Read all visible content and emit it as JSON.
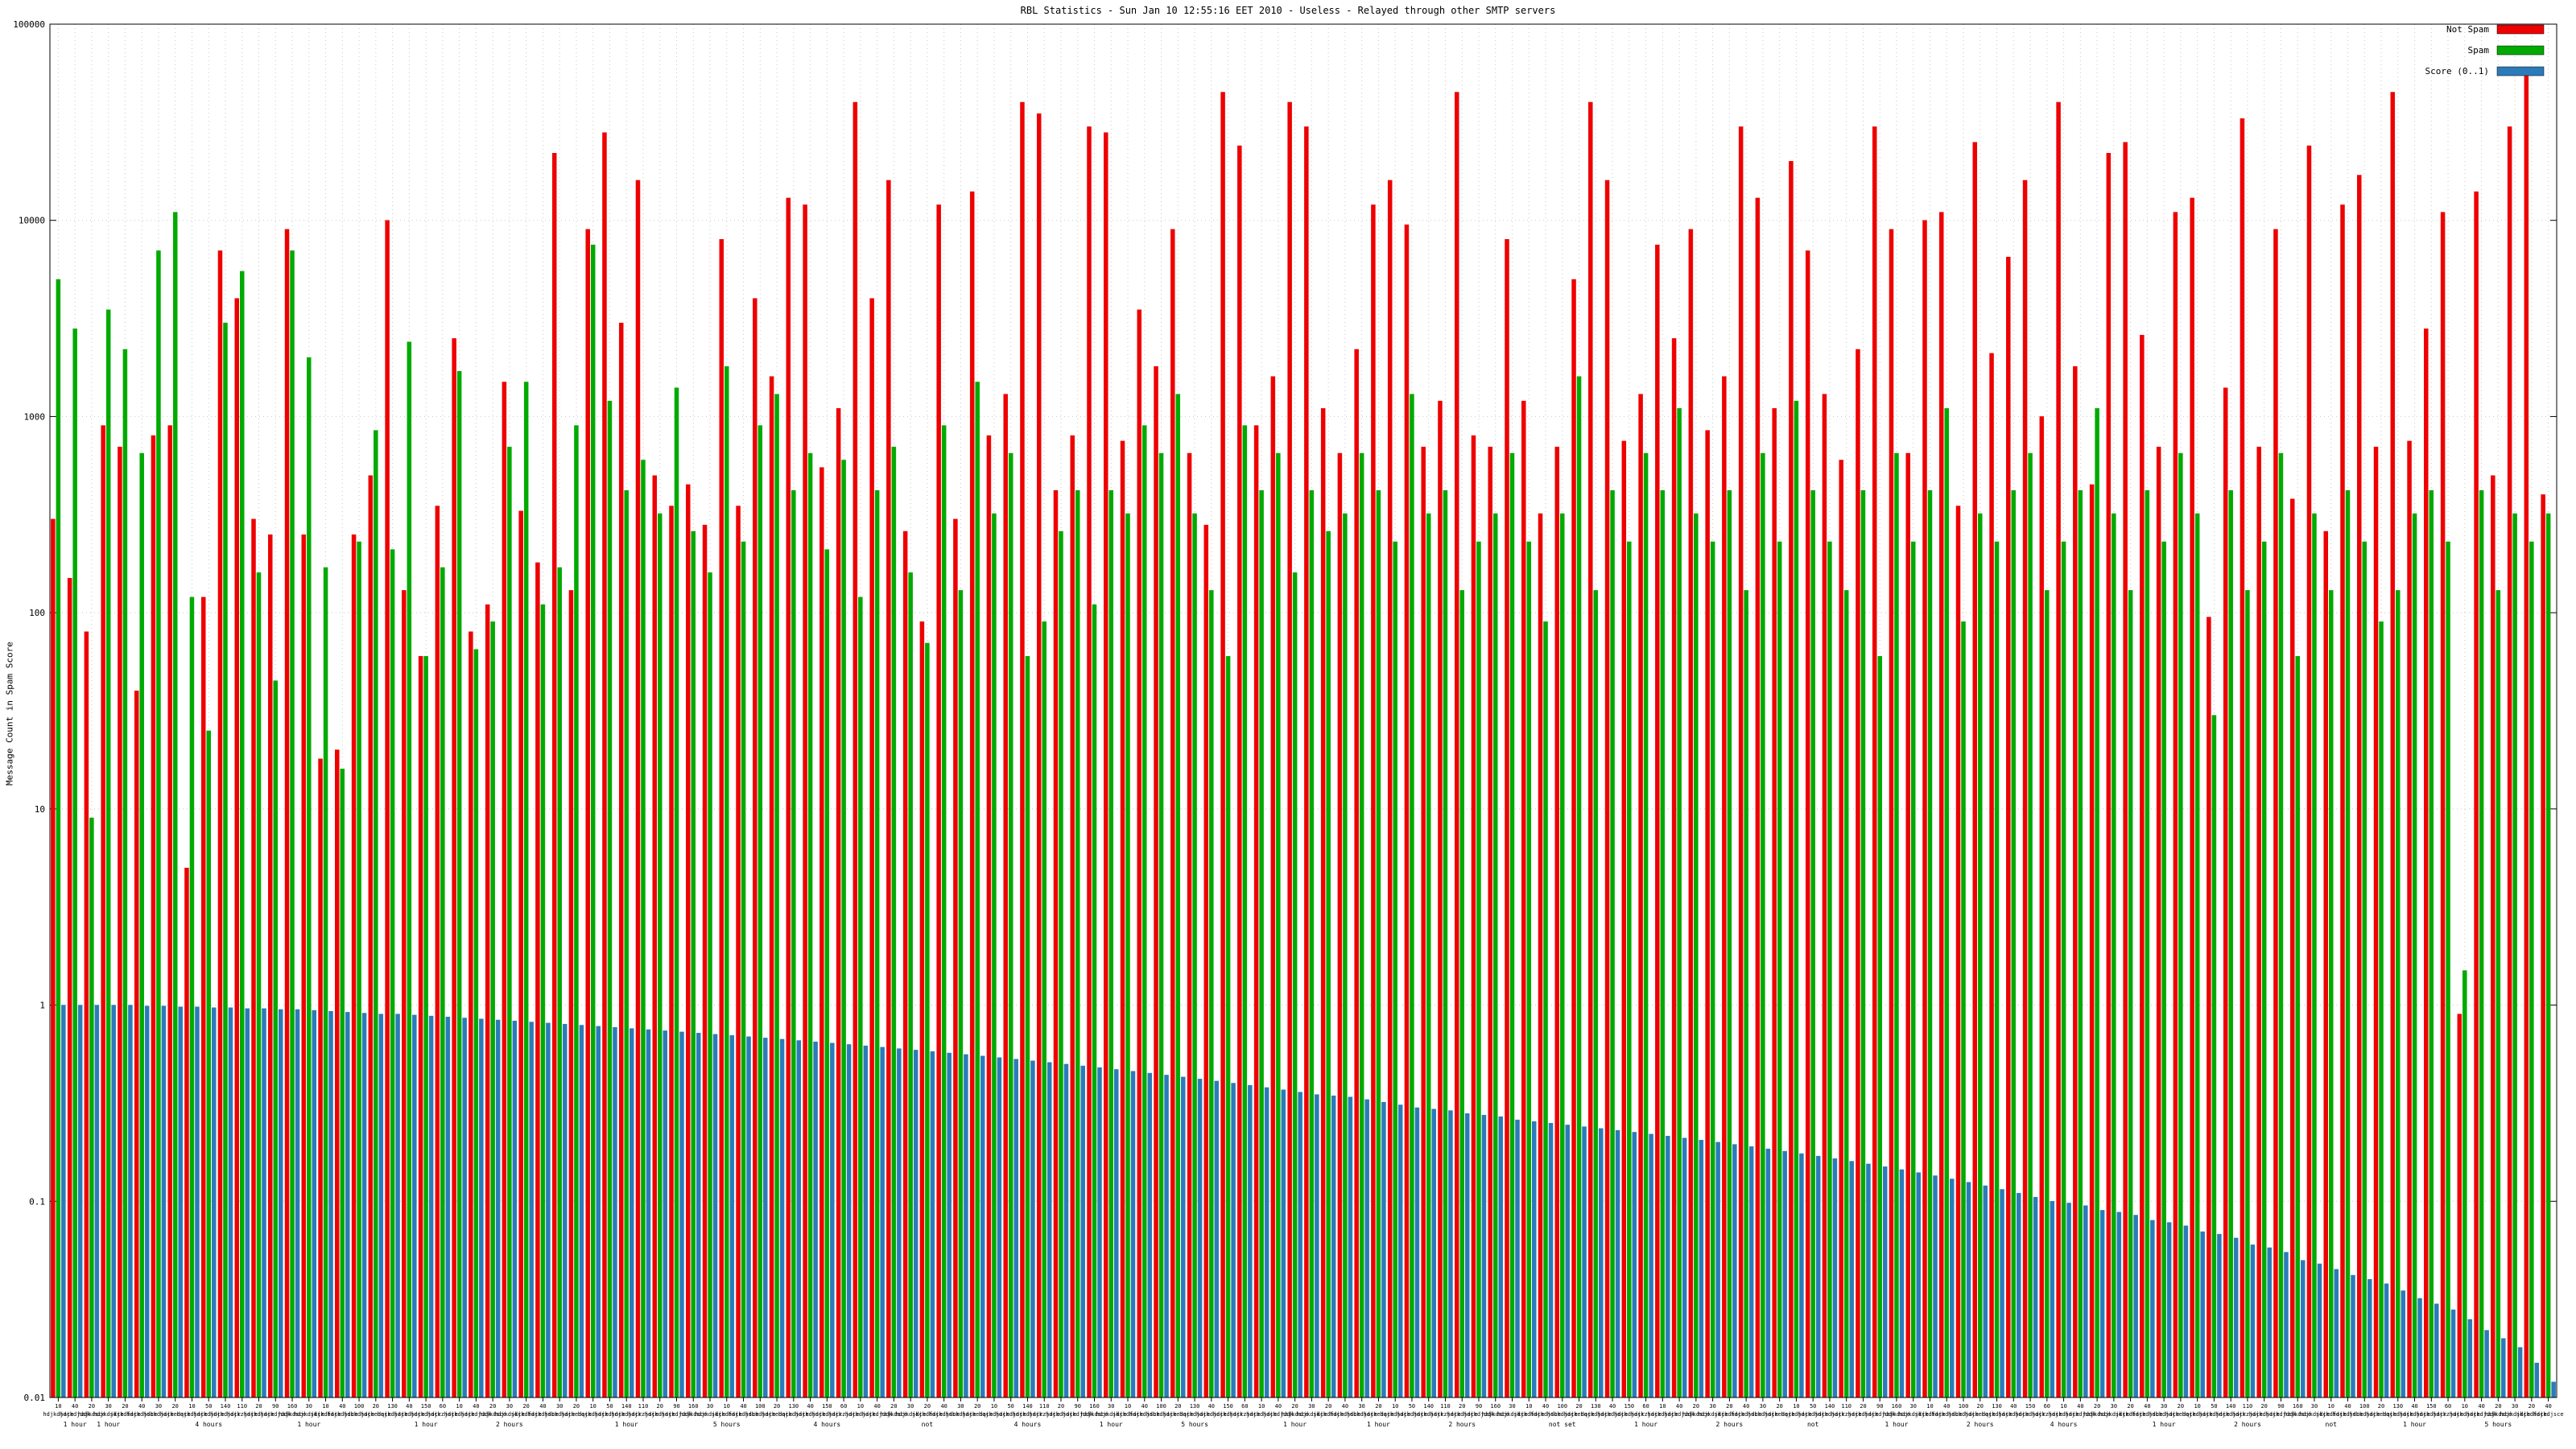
{
  "title": "RBL Statistics - Sun Jan 10 12:55:16 EET 2010 - Useless - Relayed through other SMTP servers",
  "y_axis_label": "Message Count in Spam Score",
  "colors": {
    "not_spam": "#ee0000",
    "spam": "#00aa00",
    "score": "#2b7bba",
    "grid": "#c8c8c8",
    "border": "#000000",
    "background": "#ffffff"
  },
  "legend": [
    {
      "label": "Not Spam",
      "color": "#ee0000"
    },
    {
      "label": "Spam",
      "color": "#00aa00"
    },
    {
      "label": "Score (0..1)",
      "color": "#2b7bba"
    }
  ],
  "chart_data": {
    "type": "bar",
    "scale": "log",
    "title": "RBL Statistics - Sun Jan 10 12:55:16 EET 2010 - Useless - Relayed through other SMTP servers",
    "xlabel": "",
    "ylabel": "Message Count in Spam Score",
    "ylim": [
      0.01,
      100000
    ],
    "y_ticks": [
      "100000",
      "10000",
      "1000",
      "100",
      "10",
      "1",
      "0.1",
      "0.01"
    ],
    "grid": "dotted",
    "legend_position": "top-right",
    "series": [
      {
        "name": "Not Spam",
        "color": "#ee0000",
        "values": [
          300,
          150,
          80,
          900,
          700,
          40,
          800,
          900,
          5,
          120,
          7000,
          4000,
          300,
          250,
          9000,
          250,
          18,
          20,
          250,
          500,
          10000,
          130,
          60,
          350,
          2500,
          80,
          110,
          1500,
          330,
          180,
          22000,
          130,
          9000,
          28000,
          3000,
          16000,
          500,
          350,
          450,
          280,
          8000,
          350,
          4000,
          1600,
          13000,
          12000,
          550,
          1100,
          40000,
          4000,
          16000,
          260,
          90,
          12000,
          300,
          14000,
          800,
          1300,
          40000,
          35000,
          420,
          800,
          30000,
          28000,
          750,
          3500,
          1800,
          9000,
          650,
          280,
          45000,
          24000,
          900,
          1600,
          40000,
          30000,
          1100,
          650,
          2200,
          12000,
          16000,
          9500,
          700,
          1200,
          45000,
          800,
          700,
          8000,
          1200,
          320,
          700,
          5000,
          40000,
          16000,
          750,
          1300,
          7500,
          2500,
          9000,
          850,
          1600,
          30000,
          13000,
          1100,
          20000,
          7000,
          1300,
          600,
          2200,
          30000,
          9000,
          650,
          10000,
          11000,
          350,
          25000,
          2100,
          6500,
          16000,
          1000,
          40000,
          1800,
          450,
          22000,
          25000,
          2600,
          700,
          11000,
          13000,
          95,
          1400,
          33000,
          700,
          9000,
          380,
          24000,
          260,
          12000,
          17000,
          700,
          45000,
          750,
          2800,
          11000,
          0.9,
          14000,
          500,
          30000,
          55000,
          400
        ]
      },
      {
        "name": "Spam",
        "color": "#00aa00",
        "values": [
          5000,
          2800,
          9,
          3500,
          2200,
          650,
          7000,
          11000,
          120,
          25,
          3000,
          5500,
          160,
          45,
          7000,
          2000,
          170,
          16,
          230,
          850,
          210,
          2400,
          60,
          170,
          1700,
          65,
          90,
          700,
          1500,
          110,
          170,
          900,
          7500,
          1200,
          420,
          600,
          320,
          1400,
          260,
          160,
          1800,
          230,
          900,
          1300,
          420,
          650,
          210,
          600,
          120,
          420,
          700,
          160,
          70,
          900,
          130,
          1500,
          320,
          650,
          60,
          90,
          260,
          420,
          110,
          420,
          320,
          900,
          650,
          1300,
          320,
          130,
          60,
          900,
          420,
          650,
          160,
          420,
          260,
          320,
          650,
          420,
          230,
          1300,
          320,
          420,
          130,
          230,
          320,
          650,
          230,
          90,
          320,
          1600,
          130,
          420,
          230,
          650,
          420,
          1100,
          320,
          230,
          420,
          130,
          650,
          230,
          1200,
          420,
          230,
          130,
          420,
          60,
          650,
          230,
          420,
          1100,
          90,
          320,
          230,
          420,
          650,
          130,
          230,
          420,
          1100,
          320,
          130,
          420,
          230,
          650,
          320,
          30,
          420,
          130,
          230,
          650,
          60,
          320,
          130,
          420,
          230,
          90,
          130,
          320,
          420,
          230,
          1.5,
          420,
          130,
          320,
          230,
          320
        ]
      },
      {
        "name": "Score (0..1)",
        "color": "#2b7bba",
        "values": [
          1.0,
          1.0,
          1.0,
          1.0,
          1.0,
          0.99,
          0.99,
          0.98,
          0.98,
          0.97,
          0.97,
          0.96,
          0.96,
          0.95,
          0.95,
          0.94,
          0.93,
          0.92,
          0.91,
          0.9,
          0.9,
          0.89,
          0.88,
          0.87,
          0.86,
          0.85,
          0.84,
          0.83,
          0.82,
          0.81,
          0.8,
          0.79,
          0.78,
          0.77,
          0.76,
          0.75,
          0.74,
          0.73,
          0.72,
          0.71,
          0.7,
          0.69,
          0.68,
          0.67,
          0.66,
          0.65,
          0.64,
          0.63,
          0.62,
          0.61,
          0.6,
          0.59,
          0.58,
          0.57,
          0.56,
          0.55,
          0.54,
          0.53,
          0.52,
          0.51,
          0.5,
          0.49,
          0.48,
          0.47,
          0.46,
          0.45,
          0.44,
          0.43,
          0.42,
          0.41,
          0.4,
          0.39,
          0.38,
          0.37,
          0.36,
          0.35,
          0.345,
          0.34,
          0.33,
          0.32,
          0.31,
          0.3,
          0.295,
          0.29,
          0.28,
          0.275,
          0.27,
          0.26,
          0.255,
          0.25,
          0.245,
          0.24,
          0.235,
          0.23,
          0.225,
          0.22,
          0.215,
          0.21,
          0.205,
          0.2,
          0.195,
          0.19,
          0.185,
          0.18,
          0.175,
          0.17,
          0.165,
          0.16,
          0.155,
          0.15,
          0.145,
          0.14,
          0.135,
          0.13,
          0.125,
          0.12,
          0.115,
          0.11,
          0.105,
          0.1,
          0.098,
          0.095,
          0.09,
          0.088,
          0.085,
          0.08,
          0.078,
          0.075,
          0.07,
          0.068,
          0.065,
          0.06,
          0.058,
          0.055,
          0.05,
          0.048,
          0.045,
          0.042,
          0.04,
          0.038,
          0.035,
          0.032,
          0.03,
          0.028,
          0.025,
          0.022,
          0.02,
          0.018,
          0.015,
          0.012
        ]
      }
    ],
    "x_tick_row1_cycle": [
      "10",
      "40",
      "20",
      "30",
      "20",
      "40",
      "30",
      "20",
      "10",
      "50",
      "140",
      "110",
      "20",
      "90",
      "160",
      "30",
      "10",
      "40",
      "100",
      "20",
      "130",
      "40",
      "150",
      "60"
    ],
    "x_tick_row2_cycle": [
      "hdjkdjace",
      "hdjkdjddk",
      "hajkdsce",
      "hdjkdjkce",
      "sdjkdface",
      "hdjkdjsce",
      "hdbkdjace",
      "hdjkedace",
      "hqjkdjace",
      "hdjkdjnce",
      "hdjkdjacr",
      "hdjkzjace"
    ],
    "x_sublabels": {
      "1": "1 hour",
      "3": "1 hour",
      "9": "4 hours",
      "15": "1 hour",
      "22": "1 hour",
      "27": "2 hours",
      "34": "1 hour",
      "40": "5 hours",
      "46": "4 hours",
      "52": "not",
      "58": "4 hours",
      "63": "1 hour",
      "68": "5 hours",
      "74": "1 hour",
      "79": "1 hour",
      "84": "2 hours",
      "90": "not set",
      "95": "1 hour",
      "100": "2 hours",
      "105": "not",
      "110": "1 hour",
      "115": "2 hours",
      "120": "4 hours",
      "126": "1 hour",
      "131": "2 hours",
      "136": "not",
      "141": "1 hour",
      "146": "5 hours"
    }
  }
}
